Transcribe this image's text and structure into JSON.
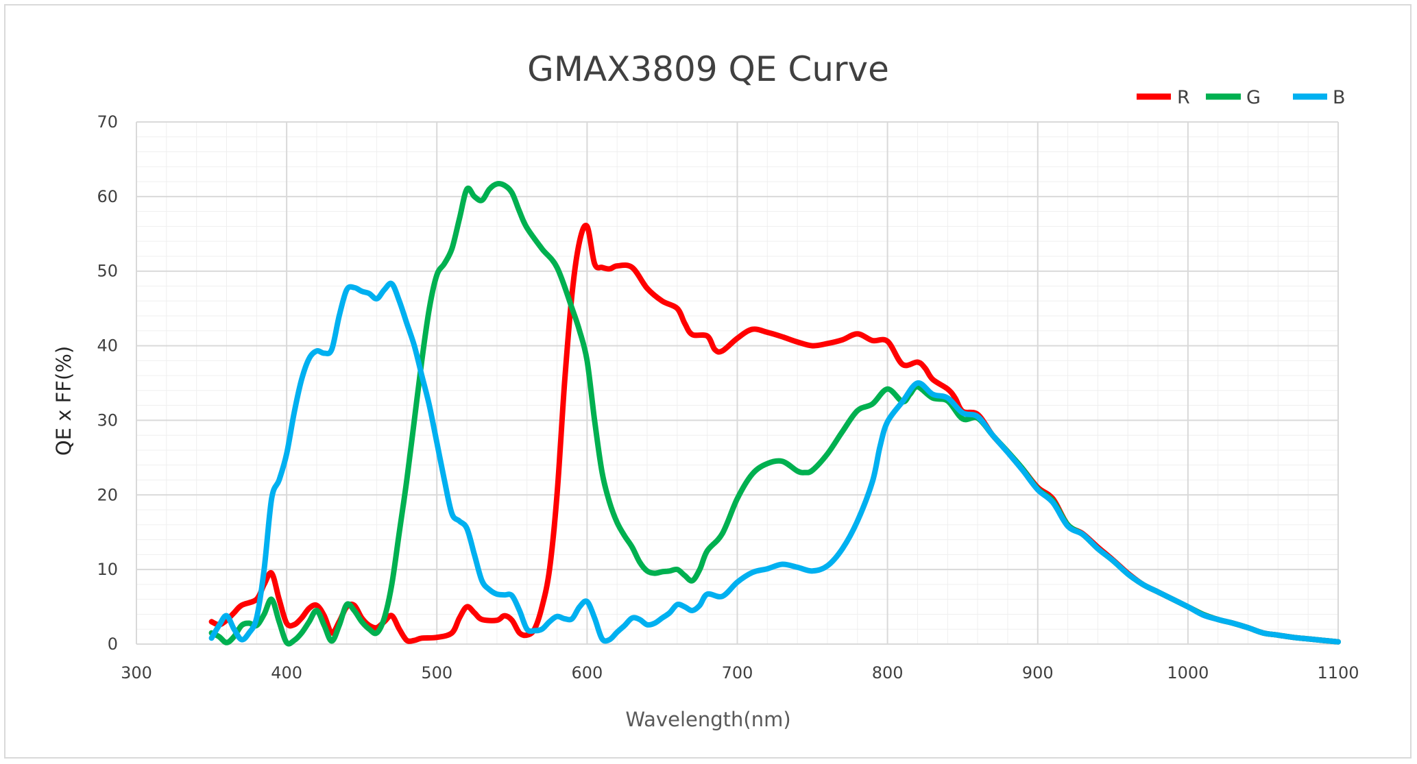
{
  "chart_data": {
    "type": "line",
    "title": "GMAX3809 QE  Curve",
    "xlabel": "Wavelength(nm)",
    "ylabel": "QE x FF(%)",
    "xlim": [
      300,
      1100
    ],
    "ylim": [
      0,
      70
    ],
    "x_ticks": [
      300,
      400,
      500,
      600,
      700,
      800,
      900,
      1000,
      1100
    ],
    "y_ticks": [
      0,
      10,
      20,
      30,
      40,
      50,
      60,
      70
    ],
    "grid": true,
    "legend_position": "top-right",
    "series": [
      {
        "name": "R",
        "color": "#ff0000",
        "points": [
          [
            350,
            3
          ],
          [
            355,
            2.6
          ],
          [
            360,
            3.2
          ],
          [
            365,
            4.2
          ],
          [
            370,
            5.2
          ],
          [
            380,
            6
          ],
          [
            385,
            8
          ],
          [
            390,
            9.5
          ],
          [
            395,
            6
          ],
          [
            400,
            2.8
          ],
          [
            405,
            2.6
          ],
          [
            410,
            3.5
          ],
          [
            415,
            4.8
          ],
          [
            420,
            5.2
          ],
          [
            425,
            3.8
          ],
          [
            430,
            1.5
          ],
          [
            435,
            3
          ],
          [
            440,
            5
          ],
          [
            445,
            5.2
          ],
          [
            450,
            3.5
          ],
          [
            455,
            2.5
          ],
          [
            460,
            2.2
          ],
          [
            465,
            3
          ],
          [
            470,
            3.8
          ],
          [
            475,
            2
          ],
          [
            480,
            0.5
          ],
          [
            485,
            0.5
          ],
          [
            490,
            0.8
          ],
          [
            500,
            0.9
          ],
          [
            510,
            1.5
          ],
          [
            515,
            3.5
          ],
          [
            520,
            5
          ],
          [
            525,
            4.2
          ],
          [
            530,
            3.3
          ],
          [
            540,
            3.2
          ],
          [
            545,
            3.8
          ],
          [
            550,
            3.2
          ],
          [
            555,
            1.5
          ],
          [
            560,
            1.2
          ],
          [
            565,
            2
          ],
          [
            570,
            5
          ],
          [
            575,
            10
          ],
          [
            580,
            20
          ],
          [
            585,
            35
          ],
          [
            590,
            47
          ],
          [
            595,
            54
          ],
          [
            600,
            56
          ],
          [
            605,
            51
          ],
          [
            610,
            50.5
          ],
          [
            615,
            50.3
          ],
          [
            620,
            50.7
          ],
          [
            630,
            50.5
          ],
          [
            640,
            47.7
          ],
          [
            650,
            46
          ],
          [
            660,
            45
          ],
          [
            665,
            43
          ],
          [
            670,
            41.5
          ],
          [
            680,
            41.3
          ],
          [
            685,
            39.5
          ],
          [
            690,
            39.3
          ],
          [
            700,
            41
          ],
          [
            710,
            42.2
          ],
          [
            720,
            41.8
          ],
          [
            730,
            41.2
          ],
          [
            740,
            40.5
          ],
          [
            750,
            40
          ],
          [
            760,
            40.3
          ],
          [
            770,
            40.8
          ],
          [
            780,
            41.6
          ],
          [
            790,
            40.7
          ],
          [
            800,
            40.6
          ],
          [
            810,
            37.5
          ],
          [
            820,
            37.8
          ],
          [
            825,
            37
          ],
          [
            830,
            35.5
          ],
          [
            840,
            34.2
          ],
          [
            845,
            33
          ],
          [
            850,
            31.2
          ],
          [
            860,
            30.8
          ],
          [
            870,
            28
          ],
          [
            880,
            25.8
          ],
          [
            890,
            23.5
          ],
          [
            900,
            21
          ],
          [
            910,
            19.5
          ],
          [
            920,
            16
          ],
          [
            930,
            14.8
          ],
          [
            940,
            13
          ],
          [
            950,
            11.3
          ],
          [
            960,
            9.5
          ],
          [
            970,
            8
          ],
          [
            980,
            7
          ],
          [
            990,
            6
          ],
          [
            1000,
            5
          ],
          [
            1010,
            4
          ],
          [
            1020,
            3.3
          ],
          [
            1030,
            2.8
          ],
          [
            1040,
            2.2
          ],
          [
            1050,
            1.5
          ],
          [
            1060,
            1.2
          ],
          [
            1070,
            0.9
          ],
          [
            1080,
            0.7
          ],
          [
            1090,
            0.5
          ],
          [
            1100,
            0.3
          ]
        ]
      },
      {
        "name": "G",
        "color": "#00b050",
        "points": [
          [
            350,
            1.5
          ],
          [
            355,
            1
          ],
          [
            360,
            0.2
          ],
          [
            365,
            1
          ],
          [
            370,
            2.5
          ],
          [
            375,
            2.8
          ],
          [
            380,
            2.5
          ],
          [
            385,
            4
          ],
          [
            390,
            6
          ],
          [
            395,
            3
          ],
          [
            400,
            0.2
          ],
          [
            405,
            0.5
          ],
          [
            410,
            1.5
          ],
          [
            415,
            3
          ],
          [
            420,
            4.5
          ],
          [
            425,
            2.5
          ],
          [
            430,
            0.4
          ],
          [
            435,
            2.5
          ],
          [
            440,
            5.3
          ],
          [
            445,
            4.5
          ],
          [
            450,
            3
          ],
          [
            455,
            2
          ],
          [
            460,
            1.5
          ],
          [
            465,
            3.5
          ],
          [
            470,
            8
          ],
          [
            475,
            15
          ],
          [
            480,
            22
          ],
          [
            485,
            30
          ],
          [
            490,
            38
          ],
          [
            495,
            45
          ],
          [
            500,
            49.5
          ],
          [
            505,
            51
          ],
          [
            510,
            53
          ],
          [
            515,
            57
          ],
          [
            520,
            61
          ],
          [
            525,
            60
          ],
          [
            530,
            59.5
          ],
          [
            535,
            61
          ],
          [
            540,
            61.7
          ],
          [
            545,
            61.5
          ],
          [
            550,
            60.5
          ],
          [
            555,
            58
          ],
          [
            560,
            55.8
          ],
          [
            570,
            53
          ],
          [
            580,
            50.5
          ],
          [
            590,
            45
          ],
          [
            595,
            42
          ],
          [
            600,
            38
          ],
          [
            605,
            30
          ],
          [
            610,
            23
          ],
          [
            615,
            19
          ],
          [
            620,
            16.3
          ],
          [
            625,
            14.5
          ],
          [
            630,
            13
          ],
          [
            635,
            11
          ],
          [
            640,
            9.8
          ],
          [
            645,
            9.5
          ],
          [
            650,
            9.7
          ],
          [
            655,
            9.8
          ],
          [
            660,
            10
          ],
          [
            665,
            9.2
          ],
          [
            670,
            8.5
          ],
          [
            675,
            10
          ],
          [
            680,
            12.5
          ],
          [
            690,
            14.8
          ],
          [
            700,
            19.5
          ],
          [
            710,
            22.8
          ],
          [
            720,
            24.2
          ],
          [
            730,
            24.5
          ],
          [
            740,
            23.2
          ],
          [
            745,
            23
          ],
          [
            750,
            23.3
          ],
          [
            760,
            25.5
          ],
          [
            770,
            28.5
          ],
          [
            780,
            31.3
          ],
          [
            790,
            32.2
          ],
          [
            800,
            34.2
          ],
          [
            810,
            32.5
          ],
          [
            815,
            33.5
          ],
          [
            820,
            34.5
          ],
          [
            830,
            33
          ],
          [
            840,
            32.6
          ],
          [
            850,
            30.2
          ],
          [
            860,
            30.3
          ],
          [
            870,
            28
          ],
          [
            880,
            25.8
          ],
          [
            890,
            23.5
          ],
          [
            900,
            20.8
          ],
          [
            910,
            19.2
          ],
          [
            920,
            16
          ],
          [
            930,
            14.7
          ],
          [
            940,
            12.8
          ],
          [
            950,
            11.2
          ],
          [
            960,
            9.4
          ],
          [
            970,
            8
          ],
          [
            980,
            7
          ],
          [
            990,
            6
          ],
          [
            1000,
            5
          ],
          [
            1010,
            4
          ],
          [
            1020,
            3.3
          ],
          [
            1030,
            2.8
          ],
          [
            1040,
            2.2
          ],
          [
            1050,
            1.5
          ],
          [
            1060,
            1.2
          ],
          [
            1070,
            0.9
          ],
          [
            1080,
            0.7
          ],
          [
            1090,
            0.5
          ],
          [
            1100,
            0.3
          ]
        ]
      },
      {
        "name": "B",
        "color": "#00b0f0",
        "points": [
          [
            350,
            0.8
          ],
          [
            355,
            2.5
          ],
          [
            360,
            3.8
          ],
          [
            365,
            2
          ],
          [
            370,
            0.6
          ],
          [
            375,
            1.5
          ],
          [
            380,
            3.5
          ],
          [
            385,
            10
          ],
          [
            390,
            19.5
          ],
          [
            395,
            22
          ],
          [
            400,
            25.5
          ],
          [
            405,
            31
          ],
          [
            410,
            35.5
          ],
          [
            415,
            38.3
          ],
          [
            420,
            39.3
          ],
          [
            425,
            39
          ],
          [
            430,
            39.5
          ],
          [
            435,
            44
          ],
          [
            440,
            47.5
          ],
          [
            445,
            47.8
          ],
          [
            450,
            47.3
          ],
          [
            455,
            47
          ],
          [
            460,
            46.3
          ],
          [
            465,
            47.5
          ],
          [
            470,
            48.3
          ],
          [
            475,
            46
          ],
          [
            480,
            43
          ],
          [
            485,
            40
          ],
          [
            490,
            36
          ],
          [
            495,
            32
          ],
          [
            500,
            27
          ],
          [
            505,
            22
          ],
          [
            510,
            17.5
          ],
          [
            515,
            16.5
          ],
          [
            520,
            15.5
          ],
          [
            525,
            12
          ],
          [
            530,
            8.5
          ],
          [
            535,
            7.3
          ],
          [
            540,
            6.7
          ],
          [
            545,
            6.6
          ],
          [
            550,
            6.5
          ],
          [
            555,
            4.5
          ],
          [
            560,
            2
          ],
          [
            565,
            1.8
          ],
          [
            570,
            2
          ],
          [
            575,
            3
          ],
          [
            580,
            3.7
          ],
          [
            585,
            3.4
          ],
          [
            590,
            3.4
          ],
          [
            595,
            5
          ],
          [
            600,
            5.7
          ],
          [
            605,
            3.5
          ],
          [
            610,
            0.7
          ],
          [
            615,
            0.6
          ],
          [
            620,
            1.6
          ],
          [
            625,
            2.5
          ],
          [
            630,
            3.5
          ],
          [
            635,
            3.3
          ],
          [
            640,
            2.6
          ],
          [
            645,
            2.8
          ],
          [
            650,
            3.5
          ],
          [
            655,
            4.2
          ],
          [
            660,
            5.3
          ],
          [
            665,
            5
          ],
          [
            670,
            4.5
          ],
          [
            675,
            5.2
          ],
          [
            680,
            6.7
          ],
          [
            690,
            6.4
          ],
          [
            700,
            8.3
          ],
          [
            710,
            9.6
          ],
          [
            720,
            10.1
          ],
          [
            730,
            10.7
          ],
          [
            740,
            10.3
          ],
          [
            750,
            9.8
          ],
          [
            760,
            10.5
          ],
          [
            770,
            12.8
          ],
          [
            780,
            16.5
          ],
          [
            790,
            21.8
          ],
          [
            795,
            26.5
          ],
          [
            800,
            29.8
          ],
          [
            810,
            32.5
          ],
          [
            820,
            35
          ],
          [
            830,
            33.5
          ],
          [
            840,
            33
          ],
          [
            850,
            31
          ],
          [
            860,
            30.5
          ],
          [
            870,
            28
          ],
          [
            880,
            25.7
          ],
          [
            890,
            23.3
          ],
          [
            900,
            20.7
          ],
          [
            910,
            19
          ],
          [
            920,
            15.8
          ],
          [
            930,
            14.7
          ],
          [
            940,
            12.8
          ],
          [
            950,
            11.2
          ],
          [
            960,
            9.4
          ],
          [
            970,
            8
          ],
          [
            980,
            7
          ],
          [
            990,
            6
          ],
          [
            1000,
            5
          ],
          [
            1010,
            3.9
          ],
          [
            1020,
            3.3
          ],
          [
            1030,
            2.8
          ],
          [
            1040,
            2.2
          ],
          [
            1050,
            1.5
          ],
          [
            1060,
            1.2
          ],
          [
            1070,
            0.9
          ],
          [
            1080,
            0.7
          ],
          [
            1090,
            0.5
          ],
          [
            1100,
            0.3
          ]
        ]
      }
    ]
  },
  "style": {
    "grid_major_color": "#d9d9d9",
    "grid_minor_color": "#efefef",
    "text_color": "#404040"
  }
}
